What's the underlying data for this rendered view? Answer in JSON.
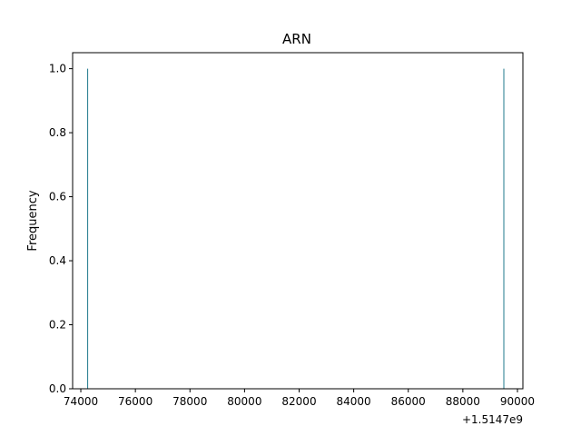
{
  "chart_data": {
    "type": "bar",
    "title": "ARN",
    "xlabel": "",
    "ylabel": "Frequency",
    "x_offset_label": "+1.5147e9",
    "xlim": [
      73700,
      90200
    ],
    "ylim": [
      0,
      1.05
    ],
    "x_ticks": [
      74000,
      76000,
      78000,
      80000,
      82000,
      84000,
      86000,
      88000,
      90000
    ],
    "x_tick_labels": [
      "74000",
      "76000",
      "78000",
      "80000",
      "82000",
      "84000",
      "86000",
      "88000",
      "90000"
    ],
    "y_ticks": [
      0.0,
      0.2,
      0.4,
      0.6,
      0.8,
      1.0
    ],
    "y_tick_labels": [
      "0.0",
      "0.2",
      "0.4",
      "0.6",
      "0.8",
      "1.0"
    ],
    "bar_width": 30,
    "bars": [
      {
        "x": 74250,
        "value": 1
      },
      {
        "x": 89500,
        "value": 1
      }
    ],
    "bar_color": "#1f7a8c",
    "grid": false,
    "legend": "none"
  }
}
